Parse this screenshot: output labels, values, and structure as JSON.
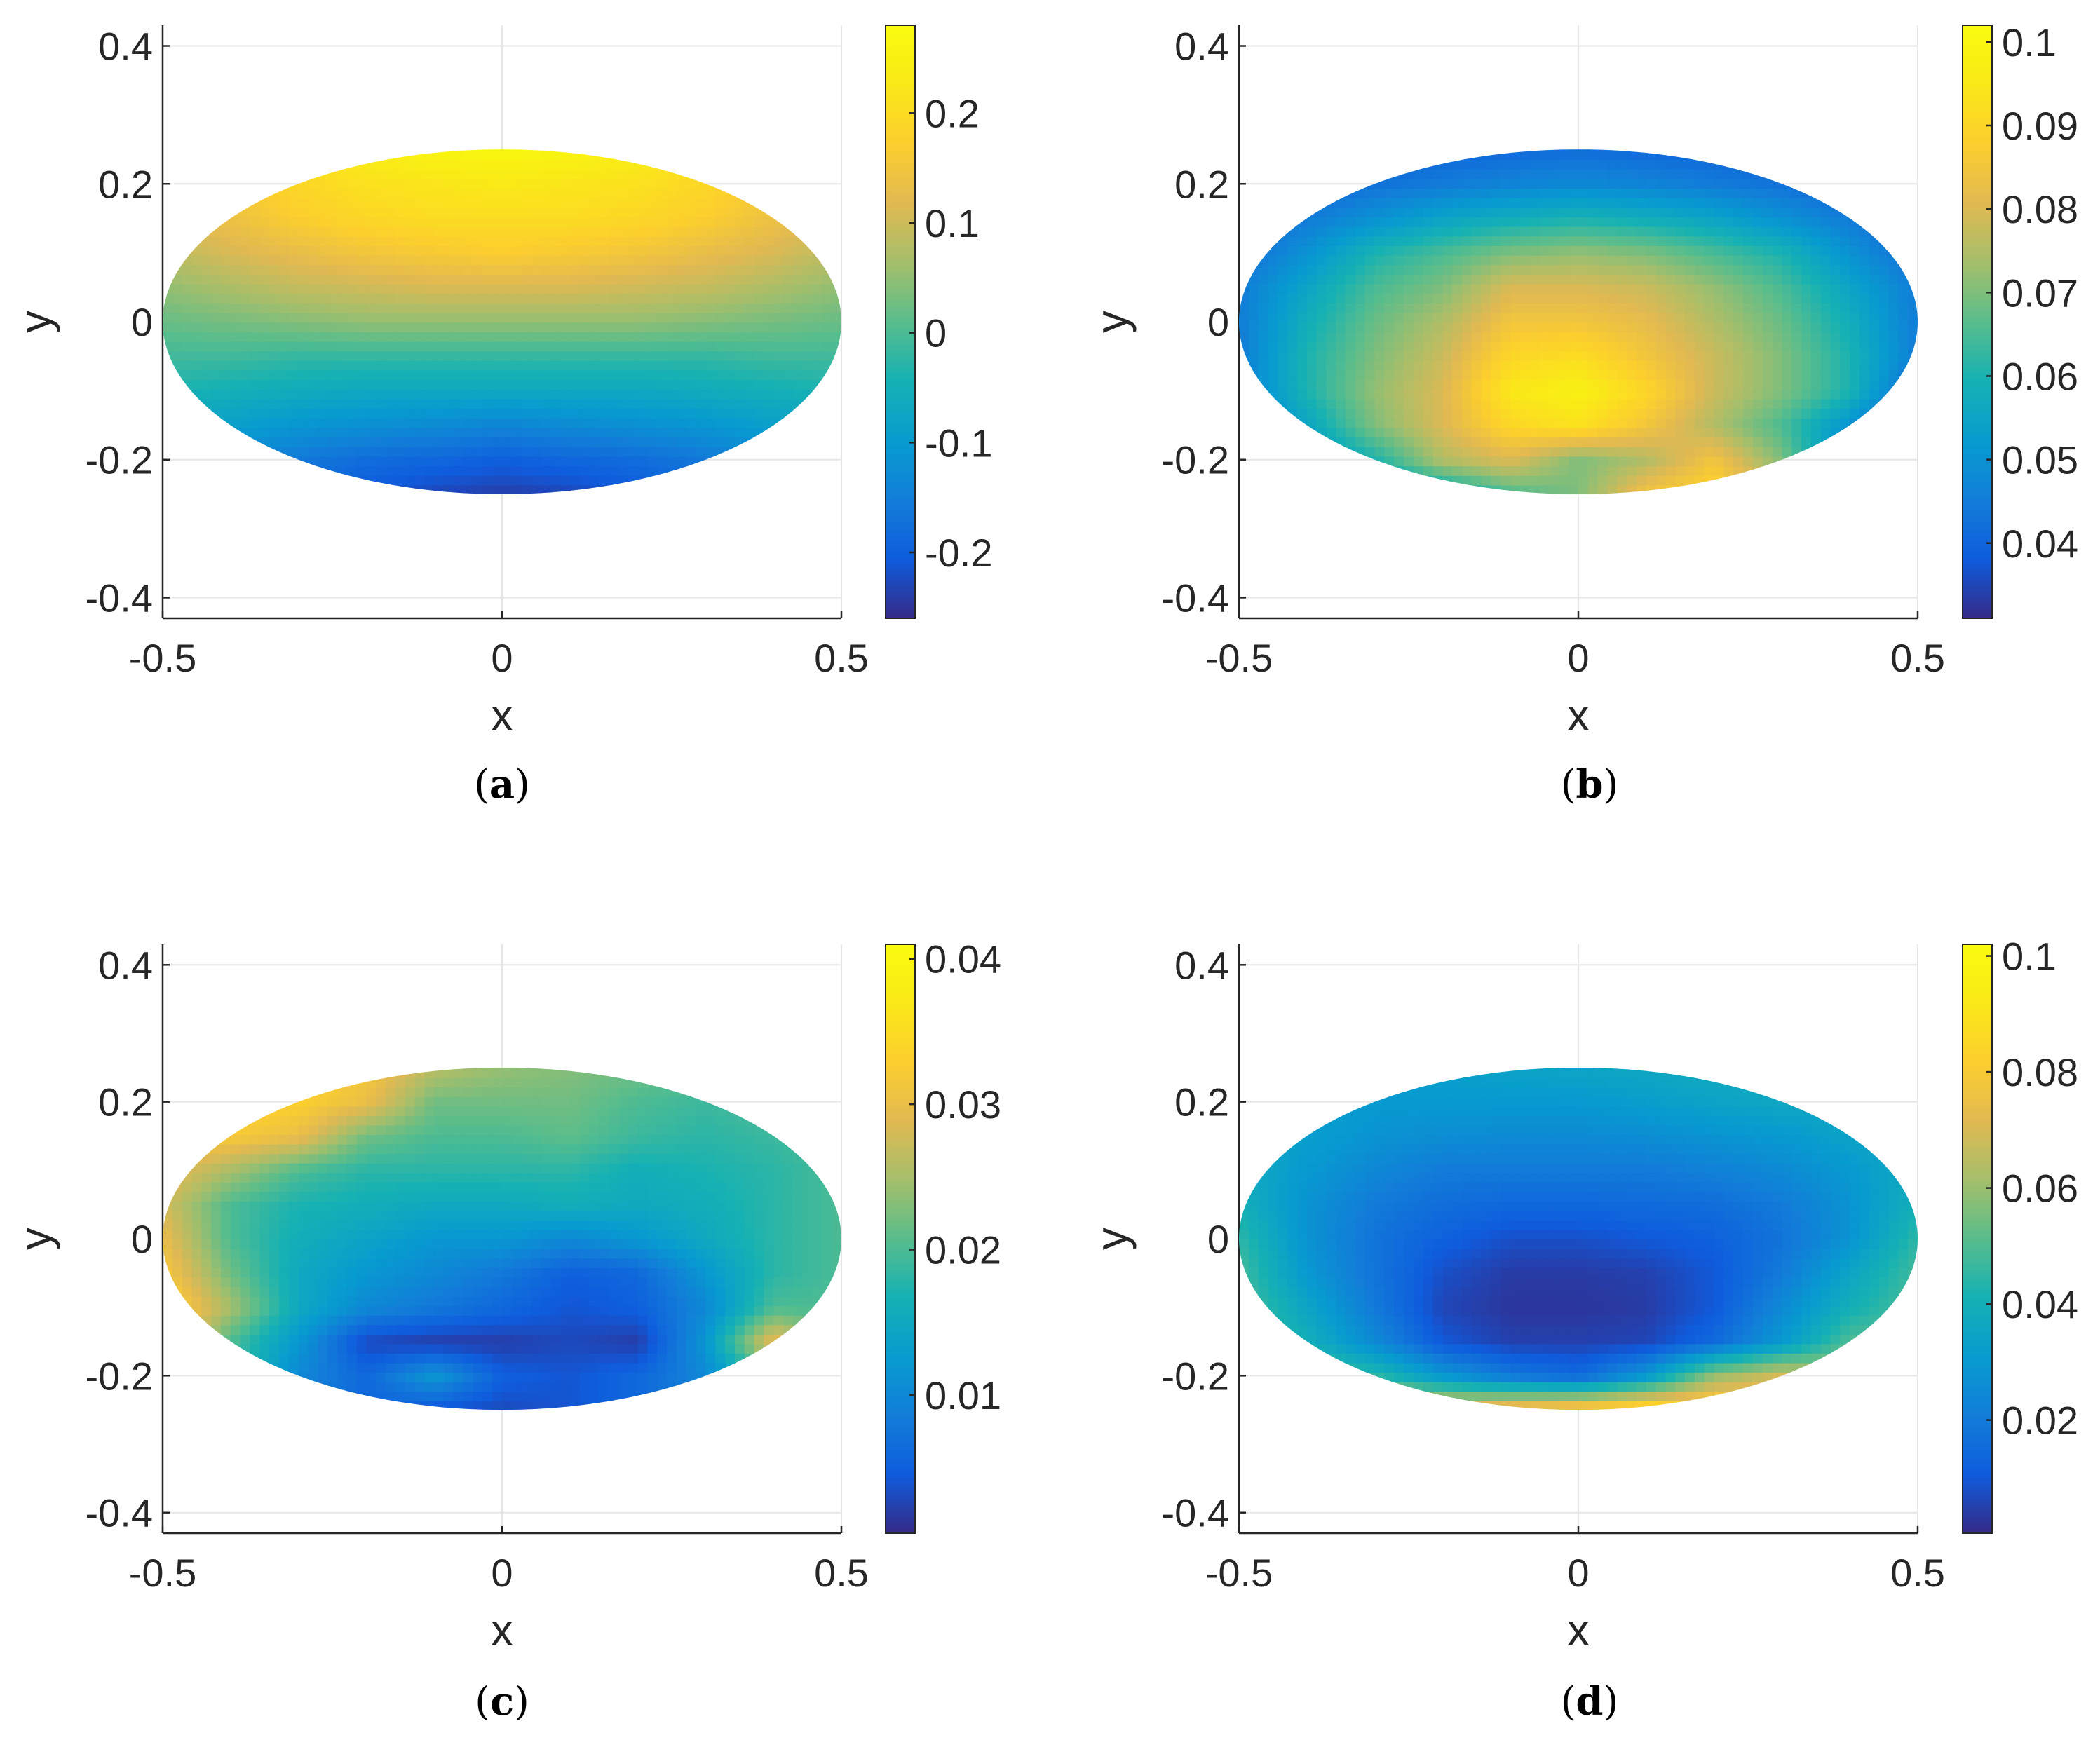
{
  "figure": {
    "layout": "2x2 grid of filled contour/surface plots on an elliptical domain, each with a colorbar"
  },
  "chart_data": [
    {
      "type": "heatmap",
      "caption": "(a)",
      "caption_letter": "a",
      "xlabel": "x",
      "ylabel": "y",
      "xlim": [
        -0.5,
        0.5
      ],
      "ylim": [
        -0.43,
        0.43
      ],
      "xticks": [
        -0.5,
        0,
        0.5
      ],
      "yticks": [
        -0.4,
        -0.2,
        0,
        0.2,
        0.4
      ],
      "xtick_labels": [
        "-0.5",
        "0",
        "0.5"
      ],
      "ytick_labels": [
        "-0.4",
        "-0.2",
        "0",
        "0.2",
        "0.4"
      ],
      "domain": {
        "shape": "ellipse",
        "center": [
          0,
          0
        ],
        "semi_axis_x": 0.5,
        "semi_axis_y": 0.25
      },
      "grid": true,
      "colormap": "parula",
      "clim": [
        -0.26,
        0.28
      ],
      "colorbar_ticks": [
        -0.2,
        -0.1,
        0,
        0.1,
        0.2
      ],
      "colorbar_tick_labels": [
        "-0.2",
        "-0.1",
        "0",
        "0.1",
        "0.2"
      ],
      "field": {
        "x": [
          -0.5,
          -0.4,
          -0.3,
          -0.2,
          -0.1,
          0,
          0.1,
          0.2,
          0.3,
          0.4,
          0.5
        ],
        "y": [
          -0.25,
          -0.2,
          -0.15,
          -0.1,
          -0.05,
          0,
          0.05,
          0.1,
          0.15,
          0.2,
          0.25
        ],
        "z": [
          [
            -0.12,
            -0.15,
            -0.18,
            -0.21,
            -0.23,
            -0.24,
            -0.23,
            -0.21,
            -0.18,
            -0.15,
            -0.12
          ],
          [
            -0.1,
            -0.13,
            -0.16,
            -0.18,
            -0.19,
            -0.2,
            -0.19,
            -0.18,
            -0.16,
            -0.13,
            -0.1
          ],
          [
            -0.07,
            -0.09,
            -0.11,
            -0.12,
            -0.13,
            -0.14,
            -0.13,
            -0.12,
            -0.11,
            -0.09,
            -0.07
          ],
          [
            -0.04,
            -0.05,
            -0.06,
            -0.07,
            -0.07,
            -0.07,
            -0.07,
            -0.07,
            -0.06,
            -0.05,
            -0.04
          ],
          [
            -0.01,
            -0.01,
            -0.02,
            -0.02,
            -0.02,
            -0.02,
            -0.02,
            -0.02,
            -0.02,
            -0.01,
            -0.01
          ],
          [
            0.02,
            0.03,
            0.04,
            0.05,
            0.05,
            0.05,
            0.05,
            0.05,
            0.04,
            0.03,
            0.02
          ],
          [
            0.05,
            0.07,
            0.09,
            0.1,
            0.11,
            0.11,
            0.11,
            0.1,
            0.09,
            0.07,
            0.05
          ],
          [
            0.08,
            0.11,
            0.13,
            0.15,
            0.16,
            0.17,
            0.16,
            0.15,
            0.13,
            0.11,
            0.08
          ],
          [
            0.11,
            0.14,
            0.17,
            0.19,
            0.2,
            0.2,
            0.2,
            0.19,
            0.17,
            0.14,
            0.11
          ],
          [
            0.13,
            0.16,
            0.19,
            0.21,
            0.22,
            0.23,
            0.22,
            0.21,
            0.19,
            0.16,
            0.13
          ],
          [
            0.14,
            0.18,
            0.21,
            0.24,
            0.26,
            0.27,
            0.26,
            0.24,
            0.21,
            0.18,
            0.14
          ]
        ]
      }
    },
    {
      "type": "heatmap",
      "caption": "(b)",
      "caption_letter": "b",
      "xlabel": "x",
      "ylabel": "y",
      "xlim": [
        -0.5,
        0.5
      ],
      "ylim": [
        -0.43,
        0.43
      ],
      "xticks": [
        -0.5,
        0,
        0.5
      ],
      "yticks": [
        -0.4,
        -0.2,
        0,
        0.2,
        0.4
      ],
      "xtick_labels": [
        "-0.5",
        "0",
        "0.5"
      ],
      "ytick_labels": [
        "-0.4",
        "-0.2",
        "0",
        "0.2",
        "0.4"
      ],
      "domain": {
        "shape": "ellipse",
        "center": [
          0,
          0
        ],
        "semi_axis_x": 0.5,
        "semi_axis_y": 0.25
      },
      "grid": true,
      "colormap": "parula",
      "clim": [
        0.031,
        0.102
      ],
      "colorbar_ticks": [
        0.04,
        0.05,
        0.06,
        0.07,
        0.08,
        0.09,
        0.1
      ],
      "colorbar_tick_labels": [
        "0.04",
        "0.05",
        "0.06",
        "0.07",
        "0.08",
        "0.09",
        "0.1"
      ],
      "field": {
        "x": [
          -0.5,
          -0.4,
          -0.3,
          -0.2,
          -0.1,
          0,
          0.1,
          0.2,
          0.3,
          0.4,
          0.5
        ],
        "y": [
          -0.25,
          -0.2,
          -0.15,
          -0.1,
          -0.05,
          0,
          0.05,
          0.1,
          0.15,
          0.2,
          0.25
        ],
        "z": [
          [
            0.04,
            0.045,
            0.05,
            0.055,
            0.065,
            0.07,
            0.085,
            0.09,
            0.08,
            0.05,
            0.035
          ],
          [
            0.045,
            0.05,
            0.06,
            0.075,
            0.08,
            0.07,
            0.075,
            0.085,
            0.07,
            0.045,
            0.035
          ],
          [
            0.045,
            0.055,
            0.07,
            0.08,
            0.09,
            0.093,
            0.085,
            0.075,
            0.065,
            0.05,
            0.035
          ],
          [
            0.045,
            0.06,
            0.072,
            0.08,
            0.095,
            0.098,
            0.09,
            0.078,
            0.07,
            0.06,
            0.04
          ],
          [
            0.045,
            0.06,
            0.07,
            0.078,
            0.09,
            0.092,
            0.085,
            0.078,
            0.07,
            0.06,
            0.045
          ],
          [
            0.045,
            0.058,
            0.068,
            0.075,
            0.085,
            0.085,
            0.082,
            0.075,
            0.068,
            0.058,
            0.045
          ],
          [
            0.045,
            0.055,
            0.065,
            0.07,
            0.08,
            0.08,
            0.078,
            0.072,
            0.065,
            0.055,
            0.045
          ],
          [
            0.042,
            0.05,
            0.06,
            0.065,
            0.07,
            0.072,
            0.07,
            0.065,
            0.06,
            0.05,
            0.042
          ],
          [
            0.04,
            0.045,
            0.05,
            0.055,
            0.058,
            0.06,
            0.058,
            0.055,
            0.05,
            0.045,
            0.04
          ],
          [
            0.038,
            0.04,
            0.043,
            0.045,
            0.047,
            0.048,
            0.047,
            0.045,
            0.043,
            0.04,
            0.038
          ],
          [
            0.035,
            0.037,
            0.038,
            0.04,
            0.041,
            0.042,
            0.041,
            0.04,
            0.038,
            0.037,
            0.035
          ]
        ]
      }
    },
    {
      "type": "heatmap",
      "caption": "(c)",
      "caption_letter": "c",
      "xlabel": "x",
      "ylabel": "y",
      "xlim": [
        -0.5,
        0.5
      ],
      "ylim": [
        -0.43,
        0.43
      ],
      "xticks": [
        -0.5,
        0,
        0.5
      ],
      "yticks": [
        -0.4,
        -0.2,
        0,
        0.2,
        0.4
      ],
      "xtick_labels": [
        "-0.5",
        "0",
        "0.5"
      ],
      "ytick_labels": [
        "-0.4",
        "-0.2",
        "0",
        "0.2",
        "0.4"
      ],
      "domain": {
        "shape": "ellipse",
        "center": [
          0,
          0
        ],
        "semi_axis_x": 0.5,
        "semi_axis_y": 0.25
      },
      "grid": true,
      "colormap": "parula",
      "clim": [
        0.0005,
        0.041
      ],
      "colorbar_ticks": [
        0.01,
        0.02,
        0.03,
        0.04
      ],
      "colorbar_tick_labels": [
        "0.01",
        "0.02",
        "0.03",
        "0.04"
      ],
      "field": {
        "x": [
          -0.5,
          -0.4,
          -0.3,
          -0.2,
          -0.1,
          0,
          0.1,
          0.2,
          0.3,
          0.4,
          0.5
        ],
        "y": [
          -0.25,
          -0.2,
          -0.15,
          -0.1,
          -0.05,
          0,
          0.05,
          0.1,
          0.15,
          0.2,
          0.25
        ],
        "z": [
          [
            0.012,
            0.01,
            0.008,
            0.006,
            0.004,
            0.003,
            0.004,
            0.006,
            0.008,
            0.012,
            0.015
          ],
          [
            0.03,
            0.02,
            0.01,
            0.006,
            0.012,
            0.005,
            0.004,
            0.006,
            0.01,
            0.02,
            0.02
          ],
          [
            0.033,
            0.02,
            0.012,
            0.003,
            0.002,
            0.002,
            0.003,
            0.002,
            0.012,
            0.03,
            0.02
          ],
          [
            0.035,
            0.025,
            0.015,
            0.01,
            0.008,
            0.006,
            0.004,
            0.005,
            0.01,
            0.02,
            0.02
          ],
          [
            0.032,
            0.022,
            0.015,
            0.012,
            0.01,
            0.008,
            0.005,
            0.006,
            0.012,
            0.018,
            0.02
          ],
          [
            0.03,
            0.02,
            0.016,
            0.014,
            0.012,
            0.012,
            0.01,
            0.012,
            0.015,
            0.018,
            0.02
          ],
          [
            0.028,
            0.02,
            0.017,
            0.016,
            0.015,
            0.015,
            0.016,
            0.015,
            0.016,
            0.018,
            0.02
          ],
          [
            0.03,
            0.025,
            0.02,
            0.018,
            0.018,
            0.018,
            0.018,
            0.016,
            0.017,
            0.018,
            0.02
          ],
          [
            0.032,
            0.032,
            0.03,
            0.022,
            0.02,
            0.02,
            0.021,
            0.019,
            0.018,
            0.019,
            0.02
          ],
          [
            0.033,
            0.034,
            0.033,
            0.03,
            0.022,
            0.022,
            0.022,
            0.02,
            0.019,
            0.02,
            0.02
          ],
          [
            0.034,
            0.035,
            0.034,
            0.032,
            0.026,
            0.024,
            0.023,
            0.022,
            0.021,
            0.02,
            0.02
          ]
        ]
      }
    },
    {
      "type": "heatmap",
      "caption": "(d)",
      "caption_letter": "d",
      "xlabel": "x",
      "ylabel": "y",
      "xlim": [
        -0.5,
        0.5
      ],
      "ylim": [
        -0.43,
        0.43
      ],
      "xticks": [
        -0.5,
        0,
        0.5
      ],
      "yticks": [
        -0.4,
        -0.2,
        0,
        0.2,
        0.4
      ],
      "xtick_labels": [
        "-0.5",
        "0",
        "0.5"
      ],
      "ytick_labels": [
        "-0.4",
        "-0.2",
        "0",
        "0.2",
        "0.4"
      ],
      "domain": {
        "shape": "ellipse",
        "center": [
          0,
          0
        ],
        "semi_axis_x": 0.5,
        "semi_axis_y": 0.25
      },
      "grid": true,
      "colormap": "parula",
      "clim": [
        0.0005,
        0.102
      ],
      "colorbar_ticks": [
        0.02,
        0.04,
        0.06,
        0.08,
        0.1
      ],
      "colorbar_tick_labels": [
        "0.02",
        "0.04",
        "0.06",
        "0.08",
        "0.1"
      ],
      "field": {
        "x": [
          -0.5,
          -0.4,
          -0.3,
          -0.2,
          -0.1,
          0,
          0.1,
          0.2,
          0.3,
          0.4,
          0.5
        ],
        "y": [
          -0.25,
          -0.2,
          -0.15,
          -0.1,
          -0.05,
          0,
          0.05,
          0.1,
          0.15,
          0.2,
          0.25
        ],
        "z": [
          [
            0.06,
            0.065,
            0.07,
            0.075,
            0.08,
            0.085,
            0.09,
            0.088,
            0.08,
            0.06,
            0.05
          ],
          [
            0.05,
            0.05,
            0.045,
            0.03,
            0.02,
            0.015,
            0.03,
            0.06,
            0.07,
            0.06,
            0.05
          ],
          [
            0.05,
            0.04,
            0.025,
            0.01,
            0.005,
            0.005,
            0.006,
            0.015,
            0.03,
            0.05,
            0.05
          ],
          [
            0.05,
            0.035,
            0.02,
            0.006,
            0.003,
            0.003,
            0.004,
            0.01,
            0.025,
            0.04,
            0.05
          ],
          [
            0.048,
            0.03,
            0.018,
            0.008,
            0.004,
            0.004,
            0.005,
            0.01,
            0.02,
            0.035,
            0.048
          ],
          [
            0.045,
            0.028,
            0.018,
            0.012,
            0.008,
            0.008,
            0.01,
            0.012,
            0.018,
            0.028,
            0.045
          ],
          [
            0.04,
            0.028,
            0.02,
            0.016,
            0.014,
            0.014,
            0.015,
            0.016,
            0.02,
            0.028,
            0.04
          ],
          [
            0.038,
            0.03,
            0.024,
            0.02,
            0.02,
            0.02,
            0.02,
            0.022,
            0.025,
            0.03,
            0.038
          ],
          [
            0.036,
            0.032,
            0.028,
            0.026,
            0.025,
            0.025,
            0.026,
            0.028,
            0.03,
            0.034,
            0.036
          ],
          [
            0.034,
            0.032,
            0.03,
            0.03,
            0.03,
            0.03,
            0.032,
            0.034,
            0.036,
            0.036,
            0.036
          ],
          [
            0.032,
            0.032,
            0.032,
            0.033,
            0.034,
            0.035,
            0.036,
            0.038,
            0.038,
            0.038,
            0.036
          ]
        ]
      }
    }
  ]
}
